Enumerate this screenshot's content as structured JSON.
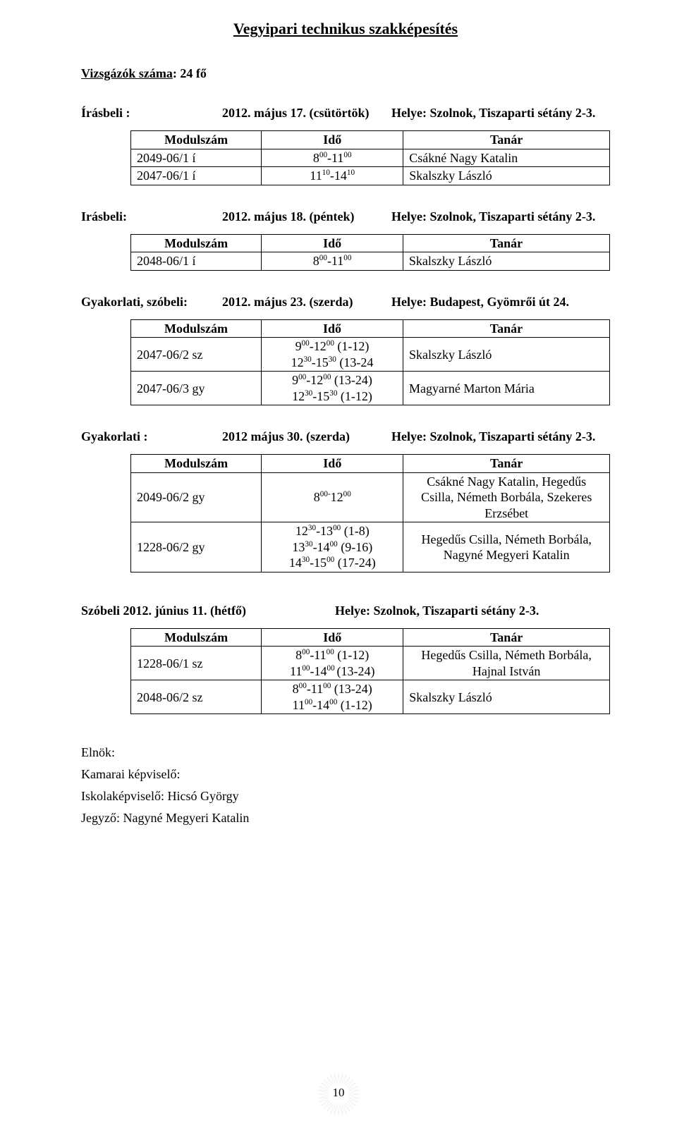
{
  "title": "Vegyipari technikus szakképesítés",
  "s1": {
    "intro_label": "Vizsgázók száma",
    "intro_value": ": 24 fő",
    "head_label": "Írásbeli :",
    "head_date": "2012. május 17. (csütörtök)",
    "head_place": "Helye: Szolnok, Tiszaparti sétány 2-3.",
    "cols": [
      "Modulszám",
      "Idő",
      "Tanár"
    ],
    "rows": [
      {
        "mod": "2049-06/1 í",
        "time": "8<sup>00</sup>-11<sup>00</sup>",
        "tan": "Csákné Nagy Katalin"
      },
      {
        "mod": "2047-06/1 í",
        "time": "11<sup>10</sup>-14<sup>10</sup>",
        "tan": "Skalszky László"
      }
    ]
  },
  "s2": {
    "head_label": "Irásbeli:",
    "head_date": "2012. május 18. (péntek)",
    "head_place": "Helye: Szolnok, Tiszaparti sétány 2-3.",
    "cols": [
      "Modulszám",
      "Idő",
      "Tanár"
    ],
    "rows": [
      {
        "mod": "2048-06/1 í",
        "time": "8<sup>00</sup>-11<sup>00</sup>",
        "tan": "Skalszky László"
      }
    ]
  },
  "s3": {
    "head_label": "Gyakorlati, szóbeli:",
    "head_date": "2012. május 23. (szerda)",
    "head_place": "Helye: Budapest, Gyömrői út 24.",
    "cols": [
      "Modulszám",
      "Idő",
      "Tanár"
    ],
    "rows": [
      {
        "mod": "2047-06/2 sz",
        "time": "9<sup>00</sup>-12<sup>00</sup> (1-12)<br>12<sup>30</sup>-15<sup>30</sup> (13-24",
        "tan": "Skalszky László"
      },
      {
        "mod": "2047-06/3 gy",
        "time": "9<sup>00</sup>-12<sup>00</sup> (13-24)<br>12<sup>30</sup>-15<sup>30</sup> (1-12)",
        "tan": "Magyarné Marton Mária"
      }
    ]
  },
  "s4": {
    "head_label": "Gyakorlati :",
    "head_date": "2012 május 30. (szerda)",
    "head_place": "Helye: Szolnok, Tiszaparti sétány 2-3.",
    "cols": [
      "Modulszám",
      "Idő",
      "Tanár"
    ],
    "rows": [
      {
        "mod": "2049-06/2 gy",
        "time": "8<sup>00-</sup>12<sup>00</sup>",
        "tan": "Csákné Nagy Katalin, Hegedűs<br>Csilla, Németh Borbála, Szekeres<br>Erzsébet"
      },
      {
        "mod": "1228-06/2 gy",
        "time": "12<sup>30</sup>-13<sup>00</sup> (1-8)<br>13<sup>30</sup>-14<sup>00</sup> (9-16)<br>14<sup>30</sup>-15<sup>00</sup> (17-24)",
        "tan": "Hegedűs Csilla, Németh Borbála,<br>Nagyné Megyeri Katalin"
      }
    ]
  },
  "s5": {
    "head_label": "Szóbeli  2012. június 11. (hétfő)",
    "head_place": "Helye: Szolnok, Tiszaparti sétány 2-3.",
    "cols": [
      "Modulszám",
      "Idő",
      "Tanár"
    ],
    "rows": [
      {
        "mod": "1228-06/1 sz",
        "time": "8<sup>00</sup>-11<sup>00</sup> (1-12)<br>11<sup>00</sup>-14<sup>00 </sup>(13-24)",
        "tan": "Hegedűs Csilla, Németh Borbála,<br>Hajnal István"
      },
      {
        "mod": "2048-06/2 sz",
        "time": "8<sup>00</sup>-11<sup>00</sup> (13-24)<br>11<sup>00</sup>-14<sup>00</sup> (1-12)",
        "tan": "Skalszky László"
      }
    ]
  },
  "footer": {
    "l1": "Elnök:",
    "l2": "Kamarai képviselő:",
    "l3": "Iskolaképviselő: Hicsó György",
    "l4": "Jegyző: Nagyné Megyeri Katalin"
  },
  "page_number": "10",
  "star_color": "#bfbfbf"
}
